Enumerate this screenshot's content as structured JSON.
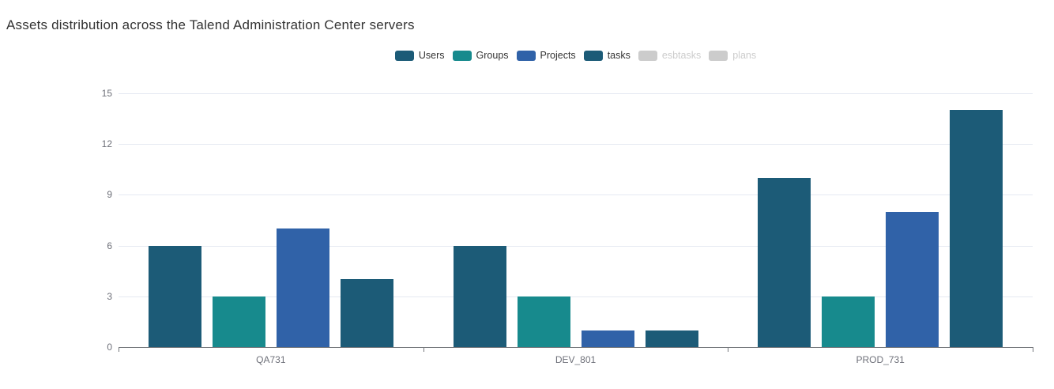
{
  "title": "Assets distribution across the Talend Administration Center servers",
  "legend": {
    "items": [
      {
        "label": "Users",
        "color": "#1c5b77",
        "enabled": true
      },
      {
        "label": "Groups",
        "color": "#178a8d",
        "enabled": true
      },
      {
        "label": "Projects",
        "color": "#3062a8",
        "enabled": true
      },
      {
        "label": "tasks",
        "color": "#1c5b77",
        "enabled": true
      },
      {
        "label": "esbtasks",
        "color": "#cccccc",
        "enabled": false
      },
      {
        "label": "plans",
        "color": "#cccccc",
        "enabled": false
      }
    ],
    "disabled_color": "#cccccc"
  },
  "chart_data": {
    "type": "bar",
    "title": "Assets distribution across the Talend Administration Center servers",
    "categories": [
      "QA731",
      "DEV_801",
      "PROD_731"
    ],
    "series": [
      {
        "name": "Users",
        "color": "#1c5b77",
        "values": [
          6,
          6,
          10
        ]
      },
      {
        "name": "Groups",
        "color": "#178a8d",
        "values": [
          3,
          3,
          3
        ]
      },
      {
        "name": "Projects",
        "color": "#3062a8",
        "values": [
          7,
          1,
          8
        ]
      },
      {
        "name": "tasks",
        "color": "#1c5b77",
        "values": [
          4,
          1,
          14
        ]
      }
    ],
    "disabled_series": [
      "esbtasks",
      "plans"
    ],
    "xlabel": "",
    "ylabel": "",
    "ylim": [
      0,
      15
    ],
    "yticks": [
      0,
      3,
      6,
      9,
      12,
      15
    ],
    "grid": true,
    "legend_position": "top-center",
    "colors": {
      "grid_line": "#e5e9f2",
      "axis_line": "#76797e",
      "axis_label": "#6e7079"
    }
  }
}
